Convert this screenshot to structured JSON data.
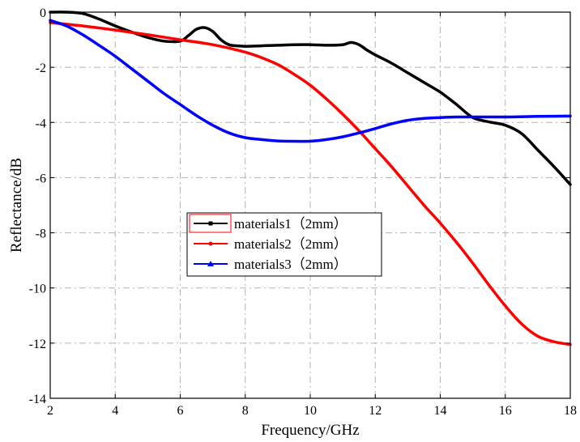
{
  "chart_data": {
    "type": "line",
    "xlabel": "Frequency/GHz",
    "ylabel": "Reflectance/dB",
    "xlim": [
      2,
      18
    ],
    "ylim": [
      -14,
      0
    ],
    "xticks": [
      2,
      4,
      6,
      8,
      10,
      12,
      14,
      16,
      18
    ],
    "yticks": [
      0,
      -2,
      -4,
      -6,
      -8,
      -10,
      -12,
      -14
    ],
    "x_tick_labels": [
      "2",
      "4",
      "6",
      "8",
      "10",
      "12",
      "14",
      "16",
      "18"
    ],
    "y_tick_labels": [
      "0",
      "-2",
      "-4",
      "-6",
      "-8",
      "-10",
      "-12",
      "-14"
    ],
    "grid": true,
    "legend_position": "center-left",
    "series": [
      {
        "name": "materials1（2mm）",
        "color": "#000000",
        "marker": "square",
        "x": [
          2,
          2.5,
          3,
          3.5,
          4,
          4.5,
          5,
          5.5,
          6,
          6.25,
          6.5,
          6.75,
          7,
          7.25,
          7.5,
          7.75,
          8,
          8.5,
          9,
          9.5,
          10,
          10.5,
          11,
          11.25,
          11.5,
          11.75,
          12,
          12.5,
          13,
          13.5,
          14,
          14.5,
          15,
          15.5,
          16,
          16.5,
          17,
          17.5,
          18
        ],
        "y": [
          0,
          0,
          -0.05,
          -0.25,
          -0.5,
          -0.72,
          -0.92,
          -1.05,
          -1.05,
          -0.85,
          -0.62,
          -0.56,
          -0.7,
          -1.0,
          -1.18,
          -1.22,
          -1.24,
          -1.22,
          -1.2,
          -1.18,
          -1.18,
          -1.2,
          -1.18,
          -1.1,
          -1.18,
          -1.38,
          -1.55,
          -1.85,
          -2.2,
          -2.55,
          -2.9,
          -3.35,
          -3.82,
          -3.98,
          -4.1,
          -4.4,
          -5.0,
          -5.6,
          -6.25
        ]
      },
      {
        "name": "materials2（2mm）",
        "color": "#ff0000",
        "marker": "dot",
        "x": [
          2,
          3,
          4,
          5,
          6,
          7,
          8,
          8.5,
          9,
          9.5,
          10,
          10.5,
          11,
          11.5,
          12,
          12.5,
          13,
          13.5,
          14,
          14.5,
          15,
          15.5,
          16,
          16.5,
          17,
          17.5,
          18
        ],
        "y": [
          -0.38,
          -0.5,
          -0.65,
          -0.82,
          -1.0,
          -1.18,
          -1.45,
          -1.65,
          -1.9,
          -2.25,
          -2.65,
          -3.15,
          -3.7,
          -4.3,
          -4.95,
          -5.6,
          -6.3,
          -7.0,
          -7.65,
          -8.35,
          -9.1,
          -9.9,
          -10.65,
          -11.3,
          -11.75,
          -11.95,
          -12.05
        ]
      },
      {
        "name": "materials3（2mm）",
        "color": "#0000ff",
        "marker": "triangle",
        "x": [
          2,
          2.5,
          3,
          3.5,
          4,
          4.5,
          5,
          5.5,
          6,
          6.5,
          7,
          7.5,
          8,
          8.5,
          9,
          9.5,
          10,
          10.5,
          11,
          11.5,
          12,
          12.5,
          13,
          13.5,
          14,
          14.5,
          15,
          16,
          17,
          18
        ],
        "y": [
          -0.3,
          -0.5,
          -0.82,
          -1.2,
          -1.6,
          -2.05,
          -2.5,
          -2.95,
          -3.35,
          -3.75,
          -4.1,
          -4.38,
          -4.55,
          -4.62,
          -4.67,
          -4.68,
          -4.68,
          -4.62,
          -4.52,
          -4.38,
          -4.22,
          -4.05,
          -3.92,
          -3.85,
          -3.82,
          -3.8,
          -3.8,
          -3.8,
          -3.78,
          -3.77
        ]
      }
    ]
  }
}
